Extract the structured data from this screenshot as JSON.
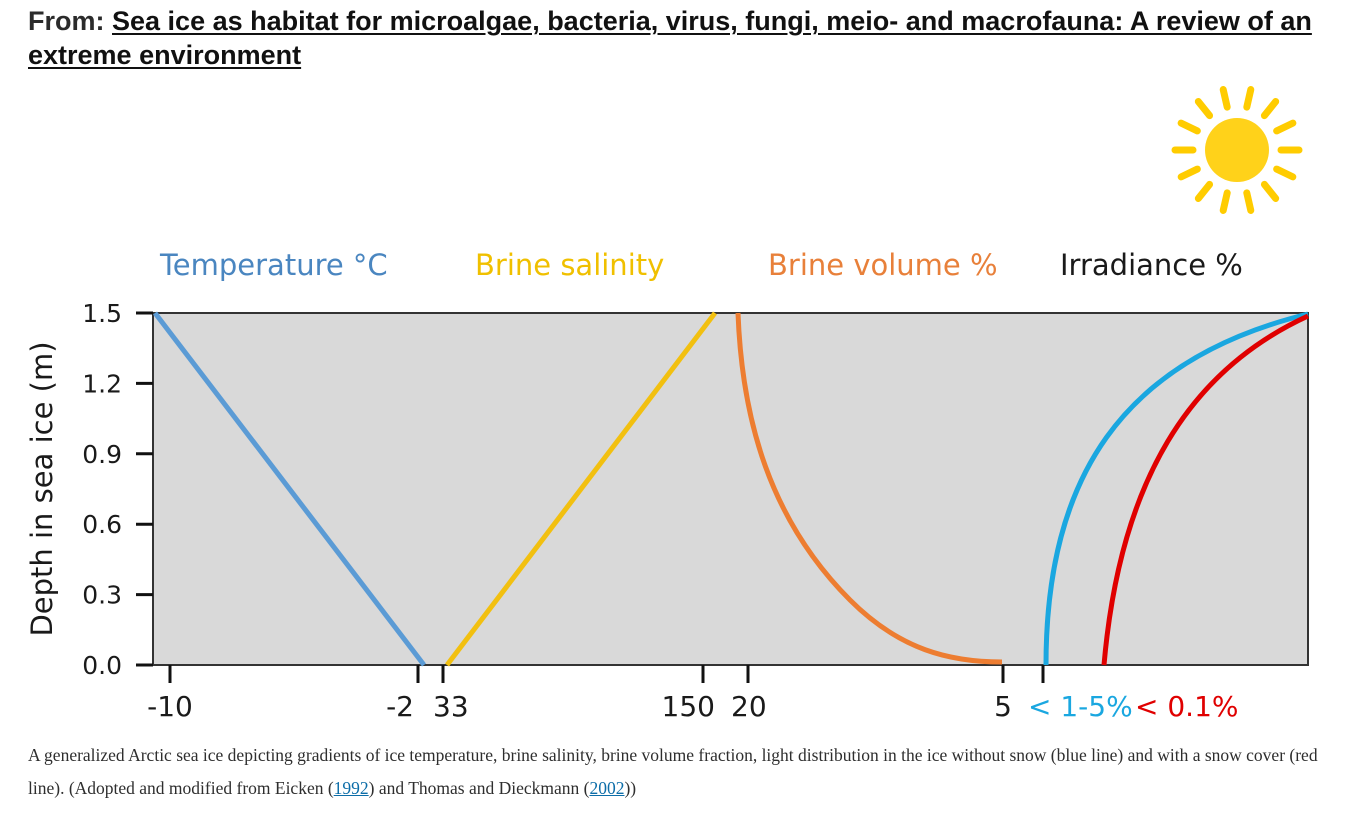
{
  "header": {
    "prefix": "From:",
    "article_title": "Sea ice as habitat for microalgae, bacteria, virus, fungi, meio- and macrofauna: A review of an extreme environment"
  },
  "icons": {
    "sun": "sun-icon"
  },
  "chart_data": {
    "type": "line",
    "ylabel": "Depth in sea ice (m)",
    "ylim": [
      0.0,
      1.5
    ],
    "yticks": [
      "0.0",
      "0.3",
      "0.6",
      "0.9",
      "1.2",
      "1.5"
    ],
    "background": "#d9d9d9",
    "panels": [
      {
        "name": "Temperature °C",
        "color": "#5b9bd5",
        "xticks": [
          "-10",
          "-2"
        ],
        "series": [
          {
            "name": "temperature",
            "color": "#5b9bd5",
            "points": [
              [
                -10,
                1.5
              ],
              [
                -2,
                0.0
              ]
            ]
          }
        ]
      },
      {
        "name": "Brine salinity",
        "color": "#f0c000",
        "xticks": [
          "33",
          "150"
        ],
        "series": [
          {
            "name": "brine salinity",
            "color": "#f2c010",
            "points": [
              [
                33,
                0.0
              ],
              [
                150,
                1.5
              ]
            ]
          }
        ]
      },
      {
        "name": "Brine volume %",
        "color": "#ed7d31",
        "xticks": [
          "20",
          "5"
        ],
        "series": [
          {
            "name": "brine volume",
            "color": "#ed7d31",
            "points": [
              [
                20,
                1.5
              ],
              [
                15,
                0.7
              ],
              [
                10,
                0.3
              ],
              [
                5,
                0.0
              ]
            ]
          }
        ]
      },
      {
        "name": "Irradiance %",
        "color": "#1a1a1a",
        "xticks": [
          "< 1-5%",
          "< 0.1%"
        ],
        "xtick_colors": [
          "#1aa7e0",
          "#e00000"
        ],
        "series": [
          {
            "name": "without snow (blue line)",
            "color": "#1aa7e0",
            "points": [
              [
                100,
                1.5
              ],
              [
                5,
                0.0
              ]
            ]
          },
          {
            "name": "with snow cover (red line)",
            "color": "#e00000",
            "points": [
              [
                100,
                1.5
              ],
              [
                0.1,
                0.0
              ]
            ]
          }
        ]
      }
    ],
    "extra_xticks": [
      "5"
    ]
  },
  "caption": {
    "text_1": "A generalized Arctic sea ice depicting gradients of ice temperature, brine salinity, brine volume fraction, light distribution in the ice without snow (blue line) and with a snow cover (red line). (Adopted and modified from Eicken (",
    "ref_1": "1992",
    "text_2": ") and Thomas and Dieckmann (",
    "ref_2": "2002",
    "text_3": "))"
  }
}
